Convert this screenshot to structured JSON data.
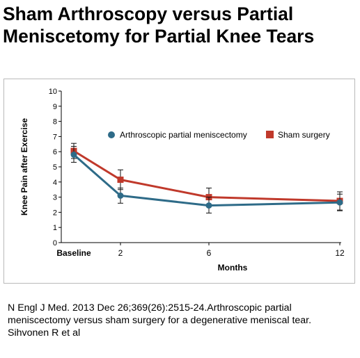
{
  "page": {
    "title_lines": [
      "Sham Arthroscopy versus Partial",
      "Meniscetomy for Partial Knee Tears"
    ],
    "caption_lines": [
      "N Engl J Med. 2013 Dec 26;369(26):2515-24.Arthroscopic partial",
      "meniscectomy versus sham surgery for a degenerative meniscal tear.",
      "Sihvonen R et al"
    ]
  },
  "chart_data": {
    "type": "line",
    "title": "",
    "xlabel": "Months",
    "ylabel": "Knee Pain after Exercise",
    "x": [
      0,
      2,
      6,
      12
    ],
    "x_tick_labels": [
      "Baseline",
      "2",
      "6",
      "12"
    ],
    "ylim": [
      0,
      10
    ],
    "y_ticks": [
      0,
      1,
      2,
      3,
      4,
      5,
      6,
      7,
      8,
      9,
      10
    ],
    "grid": false,
    "legend_position": "top-right",
    "series": [
      {
        "name": "Arthroscopic partial meniscectomy",
        "color": "#2e6b88",
        "marker": "circle",
        "values": [
          5.8,
          3.1,
          2.45,
          2.65
        ],
        "error_low": [
          5.3,
          2.6,
          1.95,
          2.1
        ],
        "error_high": [
          6.35,
          3.6,
          3.0,
          3.2
        ]
      },
      {
        "name": "Sham surgery",
        "color": "#c0392b",
        "marker": "square",
        "values": [
          6.05,
          4.15,
          3.0,
          2.75
        ],
        "error_low": [
          5.55,
          3.5,
          2.4,
          2.15
        ],
        "error_high": [
          6.55,
          4.8,
          3.6,
          3.35
        ]
      }
    ]
  }
}
